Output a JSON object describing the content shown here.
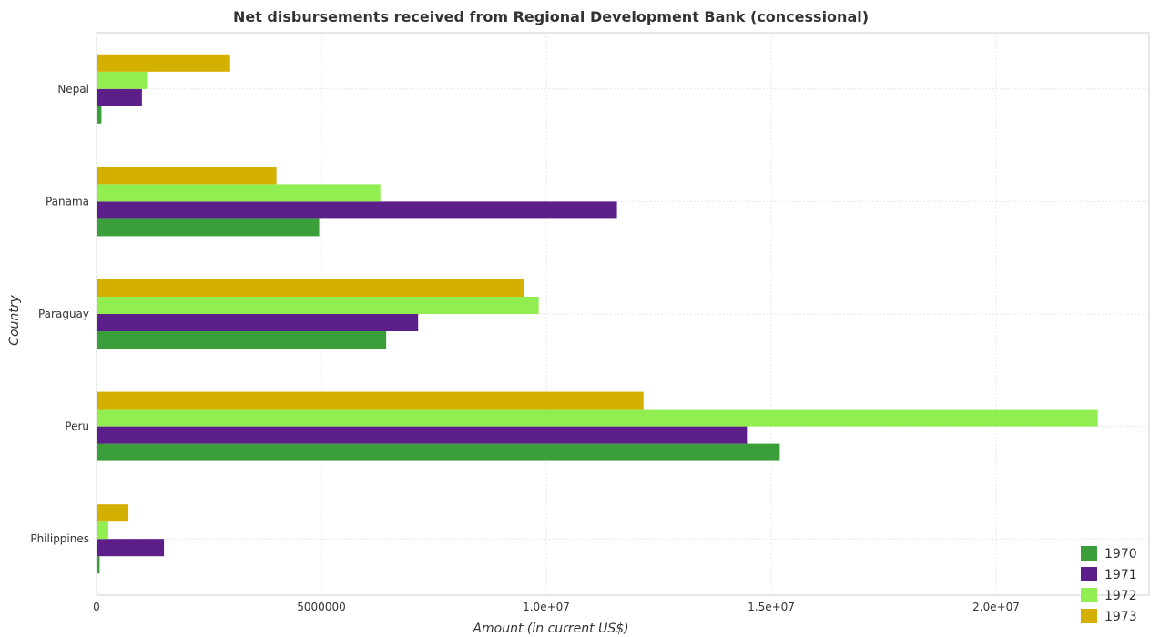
{
  "chart_data": {
    "type": "bar",
    "orientation": "horizontal",
    "title": "Net disbursements received from Regional Development Bank (concessional)",
    "xlabel": "Amount (in current US$)",
    "ylabel": "Country",
    "categories": [
      "Nepal",
      "Panama",
      "Paraguay",
      "Peru",
      "Philippines"
    ],
    "series": [
      {
        "name": "1970",
        "color": "#3a9e3a",
        "values": [
          110000,
          4950000,
          6440000,
          15190000,
          70000
        ]
      },
      {
        "name": "1971",
        "color": "#5c1f8a",
        "values": [
          1010000,
          11570000,
          7150000,
          14460000,
          1500000
        ]
      },
      {
        "name": "1972",
        "color": "#90ee50",
        "values": [
          1120000,
          6310000,
          9830000,
          22260000,
          260000
        ]
      },
      {
        "name": "1973",
        "color": "#d4b000",
        "values": [
          2970000,
          4000000,
          9500000,
          12160000,
          710000
        ]
      }
    ],
    "xlim": [
      0,
      23400000
    ],
    "xticks": [
      0,
      5000000,
      10000000,
      15000000,
      20000000
    ],
    "xtick_labels": [
      "0",
      "5000000",
      "1.0e+07",
      "1.5e+07",
      "2.0e+07"
    ],
    "grid": true,
    "legend_position": "bottom-right"
  }
}
